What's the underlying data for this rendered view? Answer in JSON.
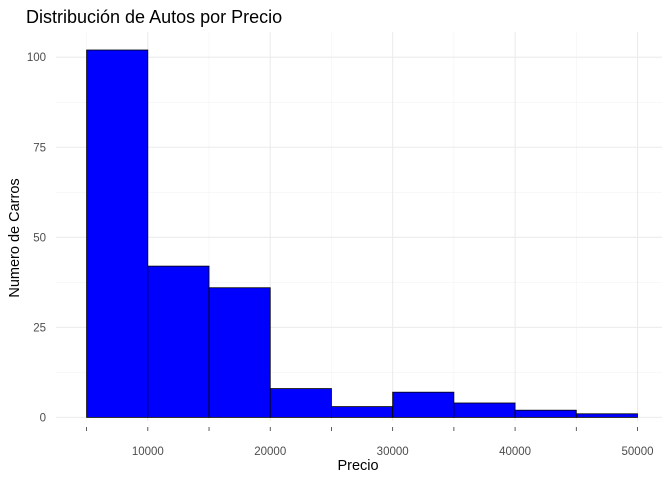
{
  "chart_data": {
    "type": "bar",
    "title": "Distribución de Autos por Precio",
    "xlabel": "Precio",
    "ylabel": "Numero de Carros",
    "bins": [
      {
        "start": 5000,
        "end": 10000,
        "count": 102
      },
      {
        "start": 10000,
        "end": 15000,
        "count": 42
      },
      {
        "start": 15000,
        "end": 20000,
        "count": 36
      },
      {
        "start": 20000,
        "end": 25000,
        "count": 8
      },
      {
        "start": 25000,
        "end": 30000,
        "count": 3
      },
      {
        "start": 30000,
        "end": 35000,
        "count": 7
      },
      {
        "start": 35000,
        "end": 40000,
        "count": 4
      },
      {
        "start": 40000,
        "end": 45000,
        "count": 2
      },
      {
        "start": 45000,
        "end": 50000,
        "count": 1
      }
    ],
    "x_ticks": [
      10000,
      20000,
      30000,
      40000,
      50000
    ],
    "x_tick_labels": [
      "10000",
      "20000",
      "30000",
      "40000",
      "50000"
    ],
    "y_ticks": [
      0,
      25,
      50,
      75,
      100
    ],
    "y_tick_labels": [
      "0",
      "25",
      "50",
      "75",
      "100"
    ],
    "xlim": [
      2500,
      52000
    ],
    "ylim": [
      -1,
      107
    ],
    "bar_color": "#0000ff",
    "bar_border_color": "#000000",
    "grid": true,
    "legend": false
  }
}
